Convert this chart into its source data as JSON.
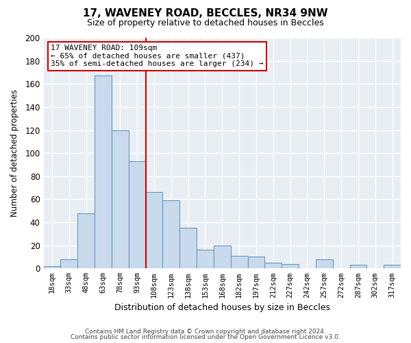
{
  "title": "17, WAVENEY ROAD, BECCLES, NR34 9NW",
  "subtitle": "Size of property relative to detached houses in Beccles",
  "xlabel": "Distribution of detached houses by size in Beccles",
  "ylabel": "Number of detached properties",
  "bar_color": "#c8daeb",
  "bar_edge_color": "#6699bb",
  "categories": [
    "18sqm",
    "33sqm",
    "48sqm",
    "63sqm",
    "78sqm",
    "93sqm",
    "108sqm",
    "123sqm",
    "138sqm",
    "153sqm",
    "168sqm",
    "182sqm",
    "197sqm",
    "212sqm",
    "227sqm",
    "242sqm",
    "257sqm",
    "272sqm",
    "287sqm",
    "302sqm",
    "317sqm"
  ],
  "values": [
    2,
    8,
    48,
    167,
    120,
    93,
    66,
    59,
    35,
    16,
    20,
    11,
    10,
    5,
    4,
    0,
    8,
    0,
    3,
    0,
    3
  ],
  "vline_index": 6,
  "vline_color": "#cc0000",
  "annotation_title": "17 WAVENEY ROAD: 109sqm",
  "annotation_line1": "← 65% of detached houses are smaller (437)",
  "annotation_line2": "35% of semi-detached houses are larger (234) →",
  "annotation_box_color": "#ffffff",
  "annotation_box_edge": "#cc0000",
  "ylim": [
    0,
    200
  ],
  "yticks": [
    0,
    20,
    40,
    60,
    80,
    100,
    120,
    140,
    160,
    180,
    200
  ],
  "footer1": "Contains HM Land Registry data © Crown copyright and database right 2024.",
  "footer2": "Contains public sector information licensed under the Open Government Licence v3.0.",
  "bg_color": "#e8eef4",
  "fig_bg": "#ffffff"
}
